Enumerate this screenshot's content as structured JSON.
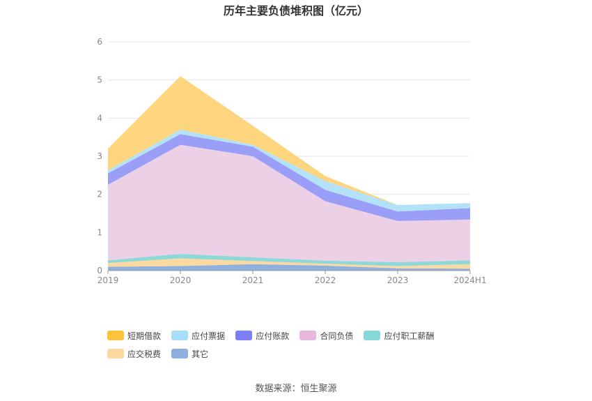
{
  "chart_data": {
    "type": "area",
    "stacked": true,
    "title": "历年主要负债堆积图（亿元）",
    "categories": [
      "2019",
      "2020",
      "2021",
      "2022",
      "2023",
      "2024H1"
    ],
    "ylim": [
      0,
      6
    ],
    "yticks": [
      "0",
      "1",
      "2",
      "3",
      "4",
      "5",
      "6"
    ],
    "grid": true,
    "legend_position": "bottom-left",
    "series": [
      {
        "name": "其它",
        "color": "#8fb0de",
        "values": [
          0.1,
          0.12,
          0.17,
          0.13,
          0.06,
          0.05
        ]
      },
      {
        "name": "应交税费",
        "color": "#fcd9a0",
        "values": [
          0.1,
          0.2,
          0.08,
          0.05,
          0.06,
          0.12
        ]
      },
      {
        "name": "应付职工薪酬",
        "color": "#8ed8d8",
        "values": [
          0.07,
          0.12,
          0.1,
          0.08,
          0.1,
          0.1
        ]
      },
      {
        "name": "合同负债",
        "color": "#ecd0e6",
        "values": [
          1.98,
          2.86,
          2.65,
          1.56,
          1.08,
          1.07
        ]
      },
      {
        "name": "应付账款",
        "color": "#9b9ef7",
        "values": [
          0.3,
          0.28,
          0.25,
          0.3,
          0.25,
          0.3
        ]
      },
      {
        "name": "应付票据",
        "color": "#b3e2f8",
        "values": [
          0.08,
          0.12,
          0.05,
          0.23,
          0.17,
          0.13
        ]
      },
      {
        "name": "短期借款",
        "color": "#fdd57e",
        "values": [
          0.57,
          1.4,
          0.5,
          0.13,
          0.0,
          0.0
        ]
      }
    ]
  },
  "legend": [
    {
      "label": "短期借款",
      "color": "#fbc23b"
    },
    {
      "label": "应付票据",
      "color": "#a7def9"
    },
    {
      "label": "应付账款",
      "color": "#7b7ff2"
    },
    {
      "label": "合同负债",
      "color": "#e7b7dc"
    },
    {
      "label": "应付职工薪酬",
      "color": "#87d8d8"
    },
    {
      "label": "应交税费",
      "color": "#fcd9a0"
    },
    {
      "label": "其它",
      "color": "#8fb0de"
    }
  ],
  "source": "数据来源：恒生聚源"
}
